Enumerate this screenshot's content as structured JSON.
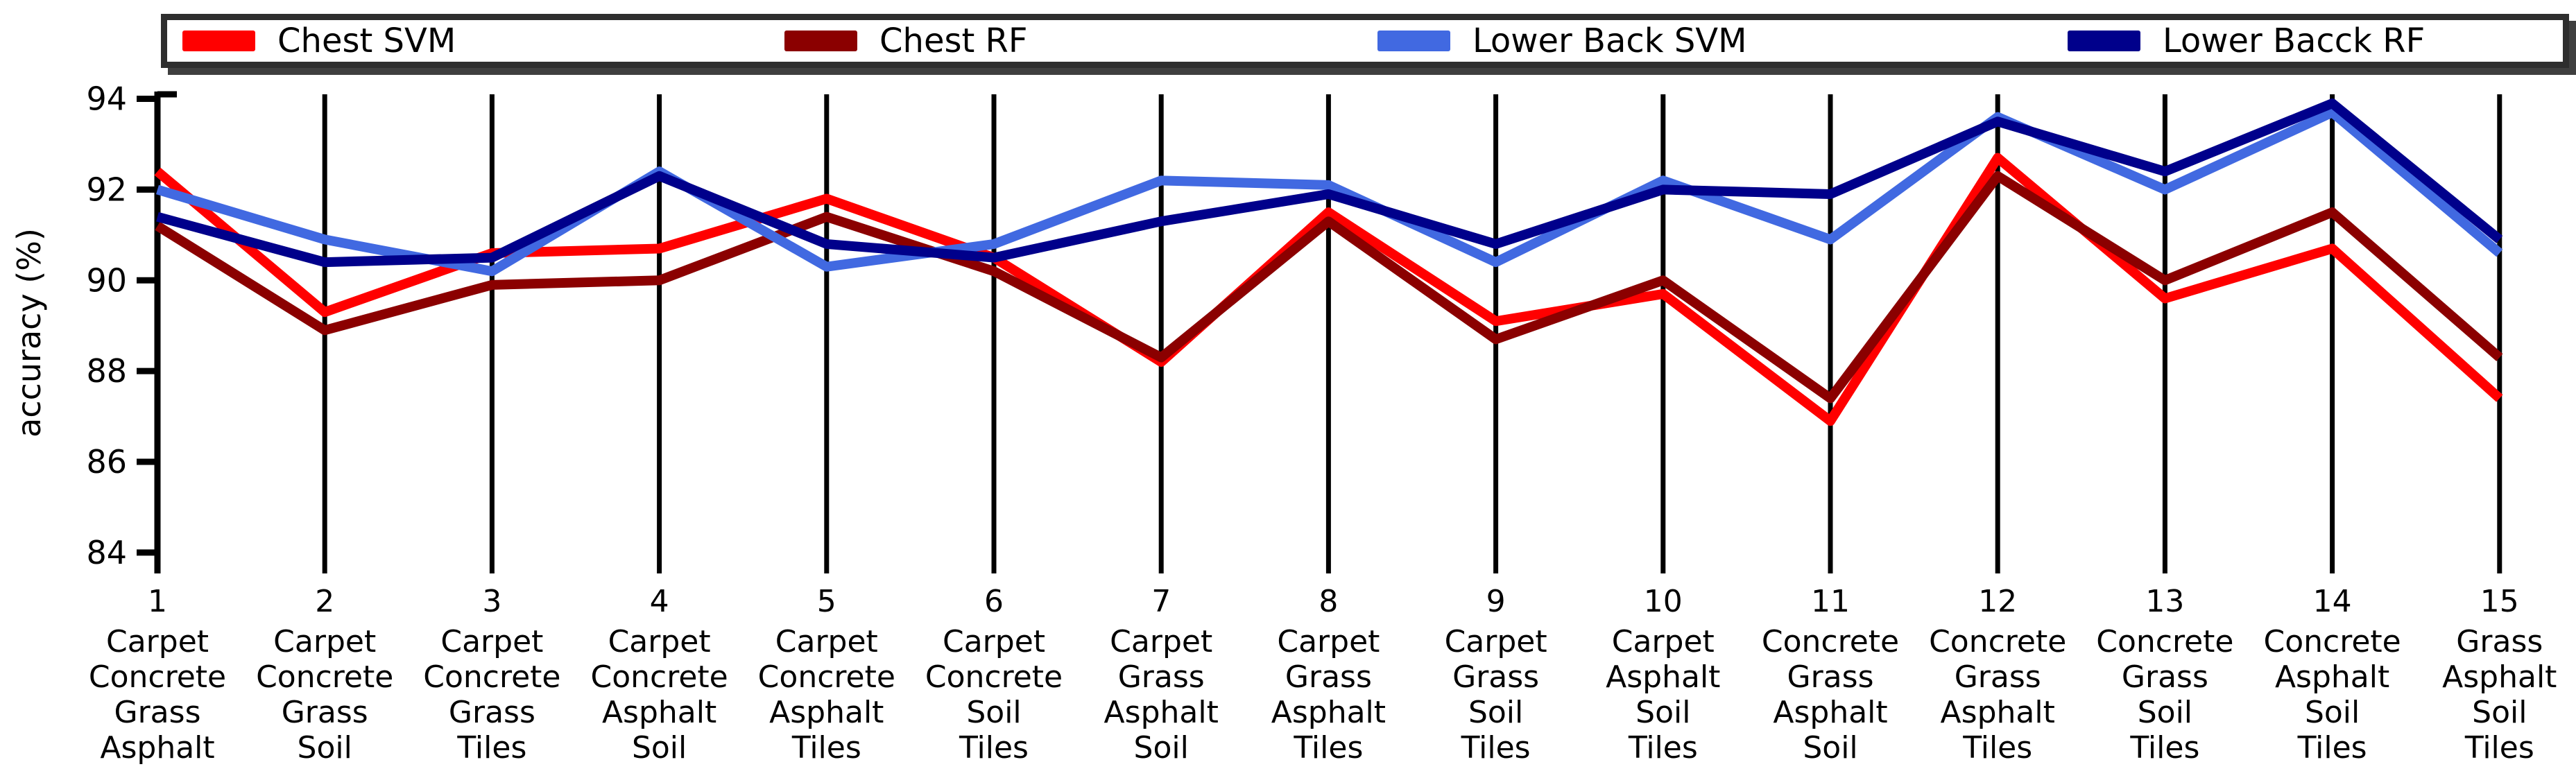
{
  "chart_data": {
    "type": "line",
    "title": "",
    "xlabel": "",
    "ylabel": "accuracy (%)",
    "ylim": [
      83.54,
      94.1
    ],
    "yticks": [
      84,
      86,
      88,
      90,
      92,
      94
    ],
    "grid": "vertical-black-lines-at-each-x",
    "legend_position": "top",
    "x": [
      1,
      2,
      3,
      4,
      5,
      6,
      7,
      8,
      9,
      10,
      11,
      12,
      13,
      14,
      15
    ],
    "categories": [
      [
        "Carpet",
        "Concrete",
        "Grass",
        "Asphalt"
      ],
      [
        "Carpet",
        "Concrete",
        "Grass",
        "Soil"
      ],
      [
        "Carpet",
        "Concrete",
        "Grass",
        "Tiles"
      ],
      [
        "Carpet",
        "Concrete",
        "Asphalt",
        "Soil"
      ],
      [
        "Carpet",
        "Concrete",
        "Asphalt",
        "Tiles"
      ],
      [
        "Carpet",
        "Concrete",
        "Soil",
        "Tiles"
      ],
      [
        "Carpet",
        "Grass",
        "Asphalt",
        "Soil"
      ],
      [
        "Carpet",
        "Grass",
        "Asphalt",
        "Tiles"
      ],
      [
        "Carpet",
        "Grass",
        "Soil",
        "Tiles"
      ],
      [
        "Carpet",
        "Asphalt",
        "Soil",
        "Tiles"
      ],
      [
        "Concrete",
        "Grass",
        "Asphalt",
        "Soil"
      ],
      [
        "Concrete",
        "Grass",
        "Asphalt",
        "Tiles"
      ],
      [
        "Concrete",
        "Grass",
        "Soil",
        "Tiles"
      ],
      [
        "Concrete",
        "Asphalt",
        "Soil",
        "Tiles"
      ],
      [
        "Grass",
        "Asphalt",
        "Soil",
        "Tiles"
      ]
    ],
    "series": [
      {
        "name": "Chest SVM",
        "color": "#ff0000",
        "values": [
          92.4,
          89.3,
          90.6,
          90.7,
          91.8,
          90.5,
          88.2,
          91.5,
          89.1,
          89.7,
          86.9,
          92.7,
          89.6,
          90.7,
          87.4
        ]
      },
      {
        "name": "Chest RF",
        "color": "#8b0000",
        "values": [
          91.2,
          88.9,
          89.9,
          90.0,
          91.4,
          90.2,
          88.3,
          91.3,
          88.7,
          90.0,
          87.4,
          92.3,
          90.0,
          91.5,
          88.3
        ]
      },
      {
        "name": "Lower Back SVM",
        "color": "#4169e1",
        "values": [
          92.0,
          90.9,
          90.2,
          92.4,
          90.3,
          90.8,
          92.2,
          92.1,
          90.4,
          92.2,
          90.9,
          93.6,
          92.0,
          93.7,
          90.6
        ]
      },
      {
        "name": "Lower Bacck RF",
        "color": "#00008b",
        "values": [
          91.4,
          90.4,
          90.5,
          92.3,
          90.8,
          90.5,
          91.3,
          91.9,
          90.8,
          92.0,
          91.9,
          93.5,
          92.4,
          93.9,
          90.9
        ]
      }
    ],
    "style": {
      "line_width": 14,
      "axis_color": "#000000",
      "gridline_color": "#000000",
      "legend_border_color": "#2e2e2e",
      "background": "#ffffff"
    }
  }
}
